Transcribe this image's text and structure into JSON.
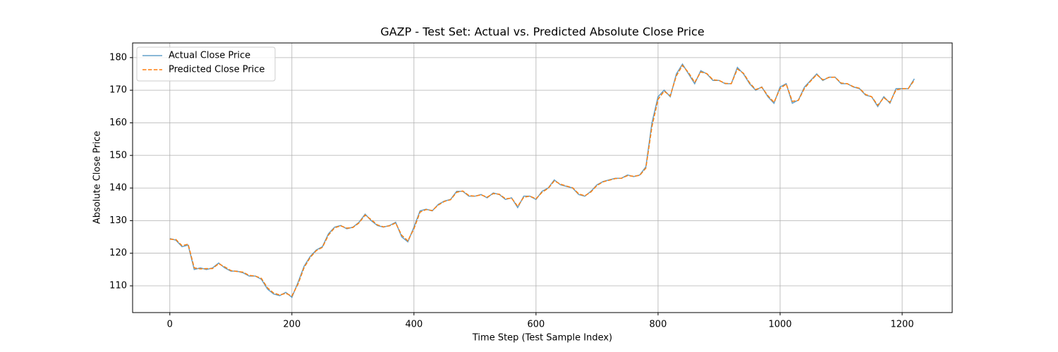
{
  "chart_data": {
    "type": "line",
    "title": "GAZP - Test Set: Actual vs. Predicted Absolute Close Price",
    "x_label": "Time Step (Test Sample Index)",
    "y_label": "Absolute Close Price",
    "x": [
      0,
      10,
      20,
      30,
      40,
      50,
      60,
      70,
      80,
      90,
      100,
      110,
      120,
      130,
      140,
      150,
      160,
      170,
      180,
      190,
      200,
      210,
      220,
      230,
      240,
      250,
      260,
      270,
      280,
      290,
      300,
      310,
      320,
      330,
      340,
      350,
      360,
      370,
      380,
      390,
      400,
      410,
      420,
      430,
      440,
      450,
      460,
      470,
      480,
      490,
      500,
      510,
      520,
      530,
      540,
      550,
      560,
      570,
      580,
      590,
      600,
      610,
      620,
      630,
      640,
      650,
      660,
      670,
      680,
      690,
      700,
      710,
      720,
      730,
      740,
      750,
      760,
      770,
      780,
      790,
      800,
      810,
      820,
      830,
      840,
      850,
      860,
      870,
      880,
      890,
      900,
      910,
      920,
      930,
      940,
      950,
      960,
      970,
      980,
      990,
      1000,
      1010,
      1020,
      1030,
      1040,
      1050,
      1060,
      1070,
      1080,
      1090,
      1100,
      1110,
      1120,
      1130,
      1140,
      1150,
      1160,
      1170,
      1180,
      1190,
      1200,
      1210,
      1220
    ],
    "series": [
      {
        "name": "Actual Close Price",
        "color": "#1f77b4",
        "opacity": 0.7,
        "linestyle": "solid",
        "values": [
          124.5,
          124,
          122,
          122.5,
          115,
          115.5,
          115,
          115.5,
          117,
          115.5,
          114.5,
          114.5,
          114,
          113,
          113,
          112,
          109,
          107.5,
          107,
          108,
          106.5,
          111,
          116,
          119,
          121,
          122,
          126,
          128,
          128.5,
          127.5,
          128,
          129.5,
          132,
          130,
          128.5,
          128,
          128.5,
          129.5,
          125,
          123.5,
          128,
          133,
          133.5,
          133,
          135,
          136,
          136.5,
          139,
          139,
          137.5,
          137.5,
          138,
          137,
          138.5,
          138,
          136.5,
          137,
          134,
          137.5,
          137.5,
          136.5,
          139,
          140,
          142.5,
          141,
          140.5,
          140,
          138,
          137.5,
          139,
          141,
          142,
          142.5,
          143,
          143,
          144,
          143.5,
          144,
          146.5,
          160,
          168,
          170,
          168,
          175,
          178,
          175,
          172,
          176,
          175,
          173,
          173,
          172,
          172,
          177,
          175,
          172,
          170,
          171,
          168,
          166,
          171,
          172,
          166,
          167,
          171,
          173,
          175,
          173,
          174,
          174,
          172,
          172,
          171,
          170.5,
          168.5,
          168,
          165,
          168,
          166,
          170.5,
          170.5,
          170.5,
          173.5
        ]
      },
      {
        "name": "Predicted Close Price",
        "color": "#ff7f0e",
        "opacity": 1,
        "linestyle": "dashed",
        "values": [
          124.3,
          124.2,
          122.3,
          122.8,
          115.5,
          115.2,
          115.3,
          115.3,
          116.8,
          115.8,
          114.7,
          114.4,
          114.2,
          113.2,
          113,
          112.3,
          109.4,
          107.8,
          107.2,
          107.7,
          106.9,
          110.5,
          115.6,
          118.7,
          120.8,
          121.8,
          125.6,
          127.8,
          128.4,
          127.7,
          127.9,
          129.3,
          131.7,
          130.3,
          128.7,
          128.1,
          128.4,
          129.3,
          125.5,
          123.8,
          127.5,
          132.6,
          133.4,
          133.1,
          134.8,
          135.9,
          136.4,
          138.7,
          139.1,
          137.7,
          137.5,
          137.9,
          137.2,
          138.3,
          138.1,
          136.7,
          136.9,
          134.4,
          137.2,
          137.5,
          136.7,
          138.7,
          139.9,
          142.2,
          141.2,
          140.6,
          140.1,
          138.2,
          137.6,
          138.8,
          140.8,
          141.9,
          142.4,
          142.9,
          143,
          143.8,
          143.6,
          143.9,
          146.1,
          158.8,
          167.2,
          169.7,
          168.3,
          174.4,
          177.6,
          175.4,
          172.4,
          175.6,
          175.1,
          173.2,
          173,
          172.1,
          172,
          176.5,
          175.2,
          172.3,
          170.2,
          170.9,
          168.3,
          166.3,
          170.5,
          171.9,
          166.6,
          166.9,
          170.6,
          172.8,
          174.8,
          173.2,
          173.9,
          174,
          172.2,
          172,
          171.1,
          170.6,
          168.7,
          168,
          165.4,
          167.7,
          166.3,
          170.1,
          170.5,
          170.5,
          173.1
        ]
      }
    ],
    "xlim": [
      -61,
      1282
    ],
    "ylim": [
      101.8,
      184.5
    ],
    "xticks": [
      0,
      200,
      400,
      600,
      800,
      1000,
      1200
    ],
    "yticks": [
      110,
      120,
      130,
      140,
      150,
      160,
      170,
      180
    ],
    "grid": true,
    "legend": "upper-left"
  }
}
